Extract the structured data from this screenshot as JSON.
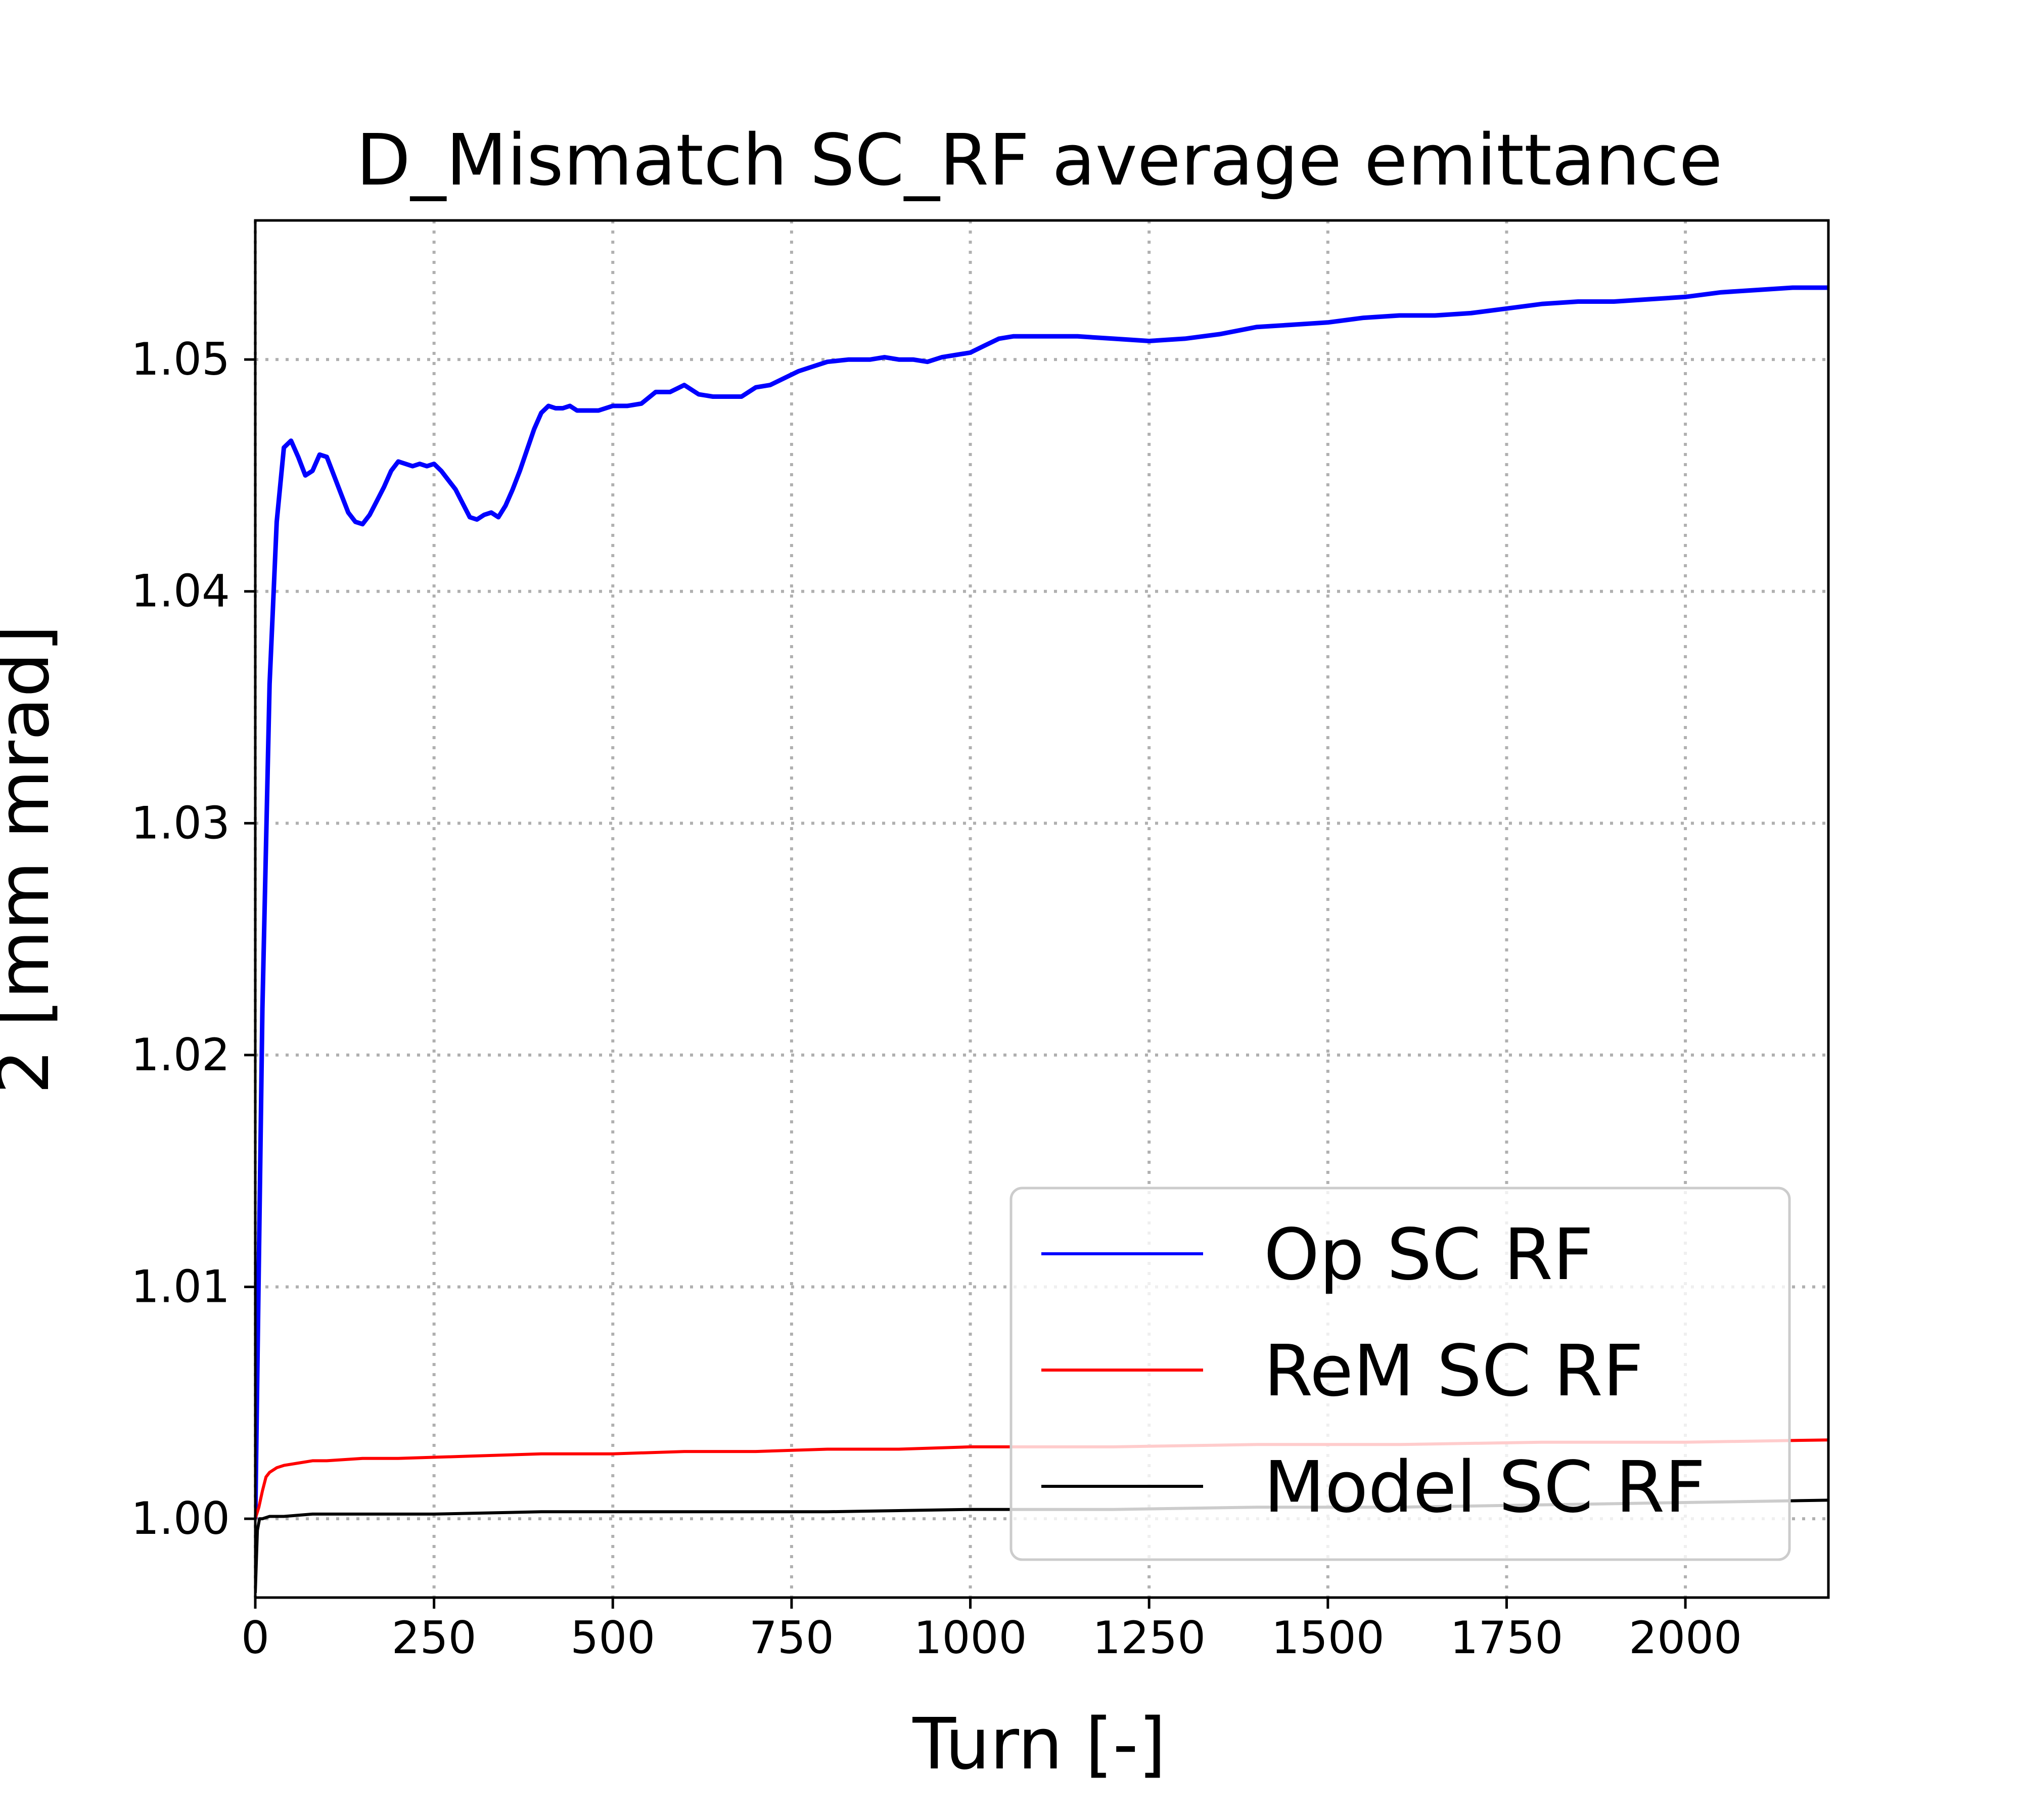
{
  "chart_data": {
    "type": "line",
    "title": "D_Mismatch SC_RF average emittance",
    "xlabel": "Turn [-]",
    "ylabel": "2 [mm mrad]",
    "xlim": [
      0,
      2200
    ],
    "ylim": [
      0.9966,
      1.056
    ],
    "xticks": [
      0,
      250,
      500,
      750,
      1000,
      1250,
      1500,
      1750,
      2000
    ],
    "xtick_labels": [
      "0",
      "250",
      "500",
      "750",
      "1000",
      "1250",
      "1500",
      "1750",
      "2000"
    ],
    "yticks": [
      1.0,
      1.01,
      1.02,
      1.03,
      1.04,
      1.05
    ],
    "ytick_labels": [
      "1.00",
      "1.01",
      "1.02",
      "1.03",
      "1.04",
      "1.05"
    ],
    "grid": true,
    "legend_position": "lower-right",
    "series": [
      {
        "name": "Op SC RF",
        "color": "#0000ff",
        "x": [
          0,
          10,
          20,
          30,
          40,
          50,
          60,
          70,
          80,
          90,
          100,
          110,
          120,
          130,
          140,
          150,
          160,
          170,
          180,
          190,
          200,
          210,
          220,
          230,
          240,
          250,
          260,
          270,
          280,
          290,
          300,
          310,
          320,
          330,
          340,
          350,
          360,
          370,
          380,
          390,
          400,
          410,
          420,
          430,
          440,
          450,
          460,
          480,
          500,
          520,
          540,
          560,
          580,
          600,
          620,
          640,
          660,
          680,
          700,
          720,
          740,
          760,
          780,
          800,
          830,
          860,
          880,
          900,
          920,
          940,
          960,
          980,
          1000,
          1020,
          1040,
          1060,
          1080,
          1100,
          1150,
          1200,
          1250,
          1300,
          1350,
          1400,
          1450,
          1500,
          1550,
          1600,
          1650,
          1700,
          1750,
          1800,
          1850,
          1900,
          1950,
          2000,
          2050,
          2100,
          2150,
          2200
        ],
        "y": [
          1.0,
          1.022,
          1.036,
          1.043,
          1.0462,
          1.0465,
          1.0458,
          1.045,
          1.0452,
          1.0459,
          1.0458,
          1.045,
          1.0442,
          1.0434,
          1.043,
          1.0429,
          1.0433,
          1.0439,
          1.0445,
          1.0452,
          1.0456,
          1.0455,
          1.0454,
          1.0455,
          1.0454,
          1.0455,
          1.0452,
          1.0448,
          1.0444,
          1.0438,
          1.0432,
          1.0431,
          1.0433,
          1.0434,
          1.0432,
          1.0437,
          1.0444,
          1.0452,
          1.0461,
          1.047,
          1.0477,
          1.048,
          1.0479,
          1.0479,
          1.048,
          1.0478,
          1.0478,
          1.0478,
          1.048,
          1.048,
          1.0481,
          1.0486,
          1.0486,
          1.0489,
          1.0485,
          1.0484,
          1.0484,
          1.0484,
          1.0488,
          1.0489,
          1.0492,
          1.0495,
          1.0497,
          1.0499,
          1.05,
          1.05,
          1.0501,
          1.05,
          1.05,
          1.0499,
          1.0501,
          1.0502,
          1.0503,
          1.0506,
          1.0509,
          1.051,
          1.051,
          1.051,
          1.051,
          1.0509,
          1.0508,
          1.0509,
          1.0511,
          1.0514,
          1.0515,
          1.0516,
          1.0518,
          1.0519,
          1.0519,
          1.052,
          1.0522,
          1.0524,
          1.0525,
          1.0525,
          1.0526,
          1.0527,
          1.0529,
          1.053,
          1.0531,
          1.0531
        ]
      },
      {
        "name": "ReM SC RF",
        "color": "#ff0000",
        "x": [
          0,
          5,
          10,
          15,
          20,
          30,
          40,
          60,
          80,
          100,
          150,
          200,
          300,
          400,
          500,
          600,
          700,
          800,
          900,
          1000,
          1200,
          1400,
          1600,
          1800,
          2000,
          2200
        ],
        "y": [
          1.0,
          1.0005,
          1.0012,
          1.0018,
          1.002,
          1.0022,
          1.0023,
          1.0024,
          1.0025,
          1.0025,
          1.0026,
          1.0026,
          1.0027,
          1.0028,
          1.0028,
          1.0029,
          1.0029,
          1.003,
          1.003,
          1.0031,
          1.0031,
          1.0032,
          1.0032,
          1.0033,
          1.0033,
          1.0034
        ]
      },
      {
        "name": "Model SC RF",
        "color": "#000000",
        "x": [
          0,
          3,
          6,
          10,
          20,
          40,
          80,
          150,
          250,
          400,
          600,
          800,
          1000,
          1200,
          1400,
          1600,
          1800,
          2000,
          2200
        ],
        "y": [
          0.9968,
          0.9995,
          1.0,
          1.0,
          1.0001,
          1.0001,
          1.0002,
          1.0002,
          1.0002,
          1.0003,
          1.0003,
          1.0003,
          1.0004,
          1.0004,
          1.0005,
          1.0005,
          1.0006,
          1.0007,
          1.0008
        ]
      }
    ]
  }
}
